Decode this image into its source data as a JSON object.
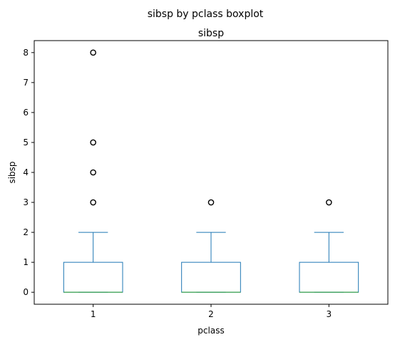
{
  "chart_data": {
    "type": "boxplot",
    "suptitle": "sibsp by pclass boxplot",
    "title": "sibsp",
    "xlabel": "pclass",
    "ylabel": "sibsp",
    "categories": [
      "1",
      "2",
      "3"
    ],
    "ylim": [
      -0.4,
      8.4
    ],
    "yticks": [
      0,
      1,
      2,
      3,
      4,
      5,
      6,
      7,
      8
    ],
    "grid": false,
    "box_color": "#1f77b4",
    "median_color": "#2ca02c",
    "boxes": [
      {
        "category": "1",
        "whislo": 0,
        "q1": 0,
        "med": 0,
        "q3": 1,
        "whishi": 2,
        "fliers": [
          3,
          4,
          5,
          8
        ]
      },
      {
        "category": "2",
        "whislo": 0,
        "q1": 0,
        "med": 0,
        "q3": 1,
        "whishi": 2,
        "fliers": [
          3
        ]
      },
      {
        "category": "3",
        "whislo": 0,
        "q1": 0,
        "med": 0,
        "q3": 1,
        "whishi": 2,
        "fliers": [
          3
        ]
      }
    ]
  }
}
